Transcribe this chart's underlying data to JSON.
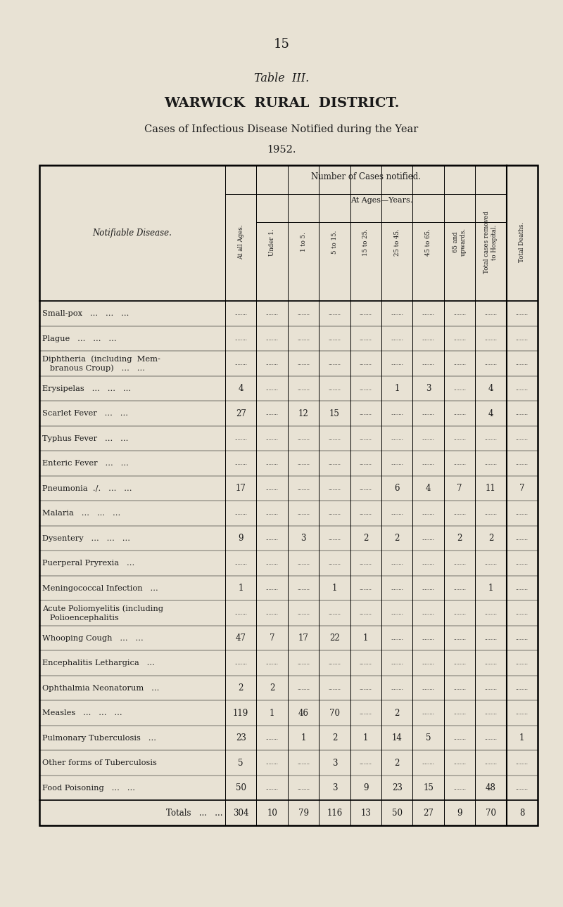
{
  "page_number": "15",
  "title1": "Table  III.",
  "title2": "WARWICK  RURAL  DISTRICT.",
  "title3": "Cases of Infectious Disease Notified during the Year",
  "title4": "1952.",
  "bg_color": "#e8e2d4",
  "col_headers_rotated": [
    "At all Ages.",
    "Under 1.",
    "1 to 5.",
    "5 to 15.",
    "15 to 25.",
    "25 to 45.",
    "45 to 65.",
    "65 and\nupwards.",
    "Total cases removed\nto Hospital.",
    "Total Deaths."
  ],
  "col_header_group": "Number of Cases notified.",
  "col_header_subgroup": "At Ages—Years.",
  "notifiable_label": "Notifiable Disease.",
  "diseases": [
    "Small-pox   ...   ...   ...",
    "Plague   ...   ...   ...",
    "Diphtheria  (including  Mem-\n   branous Croup)   ...   ...",
    "Erysipelas   ...   ...   ...",
    "Scarlet Fever   ...   ...",
    "Typhus Fever   ...   ...",
    "Enteric Fever   ...   ...",
    "Pneumonia  ./.   ...   ...",
    "Malaria   ...   ...   ...",
    "Dysentery   ...   ...   ...",
    "Puerperal Pryrexia   ...",
    "Meningococcal Infection   ...",
    "Acute Poliomyelitis (including\n   Polioencephalitis",
    "Whooping Cough   ...   ...",
    "Encephalitis Lethargica   ...",
    "Ophthalmia Neonatorum   ...",
    "Measles   ...   ...   ...",
    "Pulmonary Tuberculosis   ...",
    "Other forms of Tuberculosis",
    "Food Poisoning   ...   ...",
    "Totals   ...   ..."
  ],
  "data": [
    [
      "",
      "",
      "",
      "",
      "",
      "",
      "",
      "",
      "",
      ""
    ],
    [
      "",
      "",
      "",
      "",
      "",
      "",
      "",
      "",
      "",
      ""
    ],
    [
      "",
      "",
      "",
      "",
      "",
      "",
      "",
      "",
      "",
      ""
    ],
    [
      "4",
      "",
      "",
      "",
      "",
      "1",
      "3",
      "",
      "4",
      ""
    ],
    [
      "27",
      "",
      "12",
      "15",
      "",
      "",
      "",
      "",
      "4",
      ""
    ],
    [
      "",
      "",
      "",
      "",
      "",
      "",
      "",
      "",
      "",
      ""
    ],
    [
      "",
      "",
      "",
      "",
      "",
      "",
      "",
      "",
      "",
      ""
    ],
    [
      "17",
      "",
      "",
      "",
      "",
      "6",
      "4",
      "7",
      "11",
      "7"
    ],
    [
      "",
      "",
      "",
      "",
      "",
      "",
      "",
      "",
      "",
      ""
    ],
    [
      "9",
      "",
      "3",
      "",
      "2",
      "2",
      "",
      "2",
      "2",
      ""
    ],
    [
      "",
      "",
      "",
      "",
      "",
      "",
      "",
      "",
      "",
      ""
    ],
    [
      "1",
      "",
      "",
      "1",
      "",
      "",
      "",
      "",
      "1",
      ""
    ],
    [
      "",
      "",
      "",
      "",
      "",
      "",
      "",
      "",
      "",
      ""
    ],
    [
      "47",
      "7",
      "17",
      "22",
      "1",
      "",
      "",
      "",
      "",
      ""
    ],
    [
      "",
      "",
      "",
      "",
      "",
      "",
      "",
      "",
      "",
      ""
    ],
    [
      "2",
      "2",
      "",
      "",
      "",
      "",
      "",
      "",
      "",
      ""
    ],
    [
      "119",
      "1",
      "46",
      "70",
      "",
      "2",
      "",
      "",
      "",
      ""
    ],
    [
      "23",
      "",
      "1",
      "2",
      "1",
      "14",
      "5",
      "",
      "",
      "1"
    ],
    [
      "5",
      "",
      "",
      "3",
      "",
      "2",
      "",
      "",
      "",
      ""
    ],
    [
      "50",
      "",
      "",
      "3",
      "9",
      "23",
      "15",
      "",
      "48",
      ""
    ],
    [
      "304",
      "10",
      "79",
      "116",
      "13",
      "50",
      "27",
      "9",
      "70",
      "8"
    ]
  ],
  "is_total_row": [
    false,
    false,
    false,
    false,
    false,
    false,
    false,
    false,
    false,
    false,
    false,
    false,
    false,
    false,
    false,
    false,
    false,
    false,
    false,
    false,
    true
  ],
  "multiline_rows": [
    2,
    12
  ]
}
